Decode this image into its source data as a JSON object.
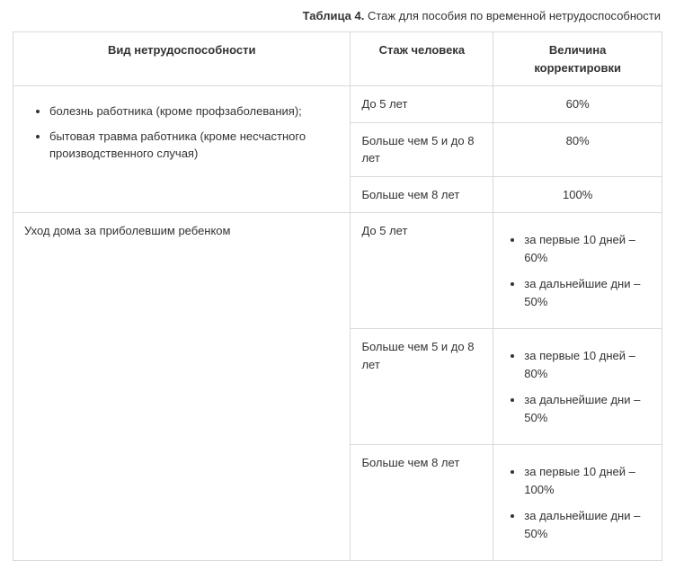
{
  "caption": {
    "label": "Таблица 4.",
    "text": "Стаж для пособия по временной нетрудоспособности"
  },
  "headers": {
    "col1": "Вид нетрудоспособности",
    "col2": "Стаж человека",
    "col3": "Величина корректировки"
  },
  "groupA": {
    "items": [
      "болезнь работника (кроме профзаболевания);",
      "бытовая травма работника (кроме несчастного производственного случая)"
    ],
    "rows": [
      {
        "stazh": "До 5 лет",
        "adj": "60%"
      },
      {
        "stazh": "Больше чем 5 и до 8 лет",
        "adj": "80%"
      },
      {
        "stazh": "Больше чем 8 лет",
        "adj": "100%"
      }
    ]
  },
  "groupB": {
    "title": "Уход дома за приболевшим ребенком",
    "rows": [
      {
        "stazh": "До 5 лет",
        "adj": [
          "за первые 10 дней – 60%",
          "за дальнейшие дни – 50%"
        ]
      },
      {
        "stazh": "Больше чем 5 и до 8 лет",
        "adj": [
          "за первые 10 дней – 80%",
          "за дальнейшие дни – 50%"
        ]
      },
      {
        "stazh": "Больше чем 8 лет",
        "adj": [
          "за первые 10 дней – 100%",
          "за дальнейшие дни – 50%"
        ]
      }
    ]
  }
}
